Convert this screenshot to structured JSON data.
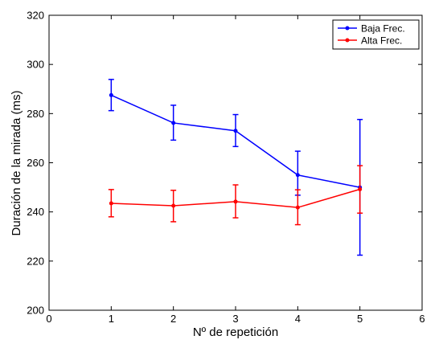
{
  "chart_data": {
    "type": "line",
    "xlabel": "Nº de repetición",
    "ylabel": "Duración de la mirada (ms)",
    "xlim": [
      0,
      6
    ],
    "ylim": [
      200,
      320
    ],
    "xticks": [
      0,
      1,
      2,
      3,
      4,
      5,
      6
    ],
    "yticks": [
      200,
      220,
      240,
      260,
      280,
      300,
      320
    ],
    "grid": false,
    "legend_position": "top-right",
    "series": [
      {
        "name": "Baja Frec.",
        "color": "#0000ff",
        "x": [
          1,
          2,
          3,
          4,
          5
        ],
        "y": [
          287.5,
          276.2,
          273.0,
          255.0,
          250.0
        ],
        "err_low": [
          281.2,
          269.2,
          266.6,
          246.8,
          222.4
        ],
        "err_high": [
          293.9,
          283.4,
          279.6,
          264.7,
          277.6
        ]
      },
      {
        "name": "Alta Frec.",
        "color": "#ff0000",
        "x": [
          1,
          2,
          3,
          4,
          5
        ],
        "y": [
          243.5,
          242.5,
          244.2,
          241.8,
          249.2
        ],
        "err_low": [
          238.0,
          236.0,
          237.6,
          234.8,
          239.5
        ],
        "err_high": [
          249.1,
          248.8,
          251.0,
          249.0,
          258.8
        ]
      }
    ]
  }
}
